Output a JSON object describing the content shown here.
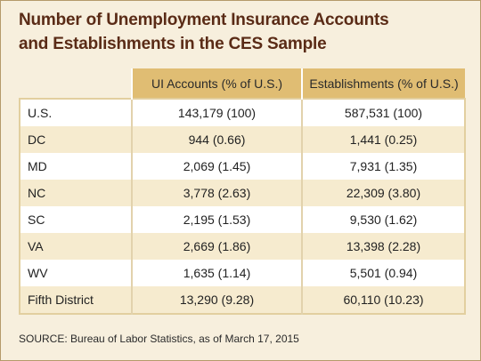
{
  "chart_data": {
    "type": "table",
    "title_line1": "Number of Unemployment Insurance Accounts",
    "title_line2": "and Establishments in the CES Sample",
    "columns": [
      "",
      "UI Accounts (% of U.S.)",
      "Establishments (% of U.S.)"
    ],
    "rows": [
      {
        "label": "U.S.",
        "ui": "143,179 (100)",
        "est": "587,531 (100)"
      },
      {
        "label": "DC",
        "ui": "944 (0.66)",
        "est": "1,441 (0.25)"
      },
      {
        "label": "MD",
        "ui": "2,069 (1.45)",
        "est": "7,931 (1.35)"
      },
      {
        "label": "NC",
        "ui": "3,778 (2.63)",
        "est": "22,309 (3.80)"
      },
      {
        "label": "SC",
        "ui": "2,195 (1.53)",
        "est": "9,530 (1.62)"
      },
      {
        "label": "VA",
        "ui": "2,669 (1.86)",
        "est": "13,398 (2.28)"
      },
      {
        "label": "WV",
        "ui": "1,635 (1.14)",
        "est": "5,501 (0.94)"
      },
      {
        "label": "Fifth District",
        "ui": "13,290 (9.28)",
        "est": "60,110 (10.23)"
      }
    ],
    "source_label": "SOURCE:",
    "source_text": "Bureau of Labor Statistics, as of March 17, 2015"
  },
  "colors": {
    "panel_background": "#f7efdd",
    "title": "#5a2b16",
    "header_fill": "#e0bd73",
    "row_cream": "#f6ebcf",
    "row_white": "#ffffff"
  }
}
